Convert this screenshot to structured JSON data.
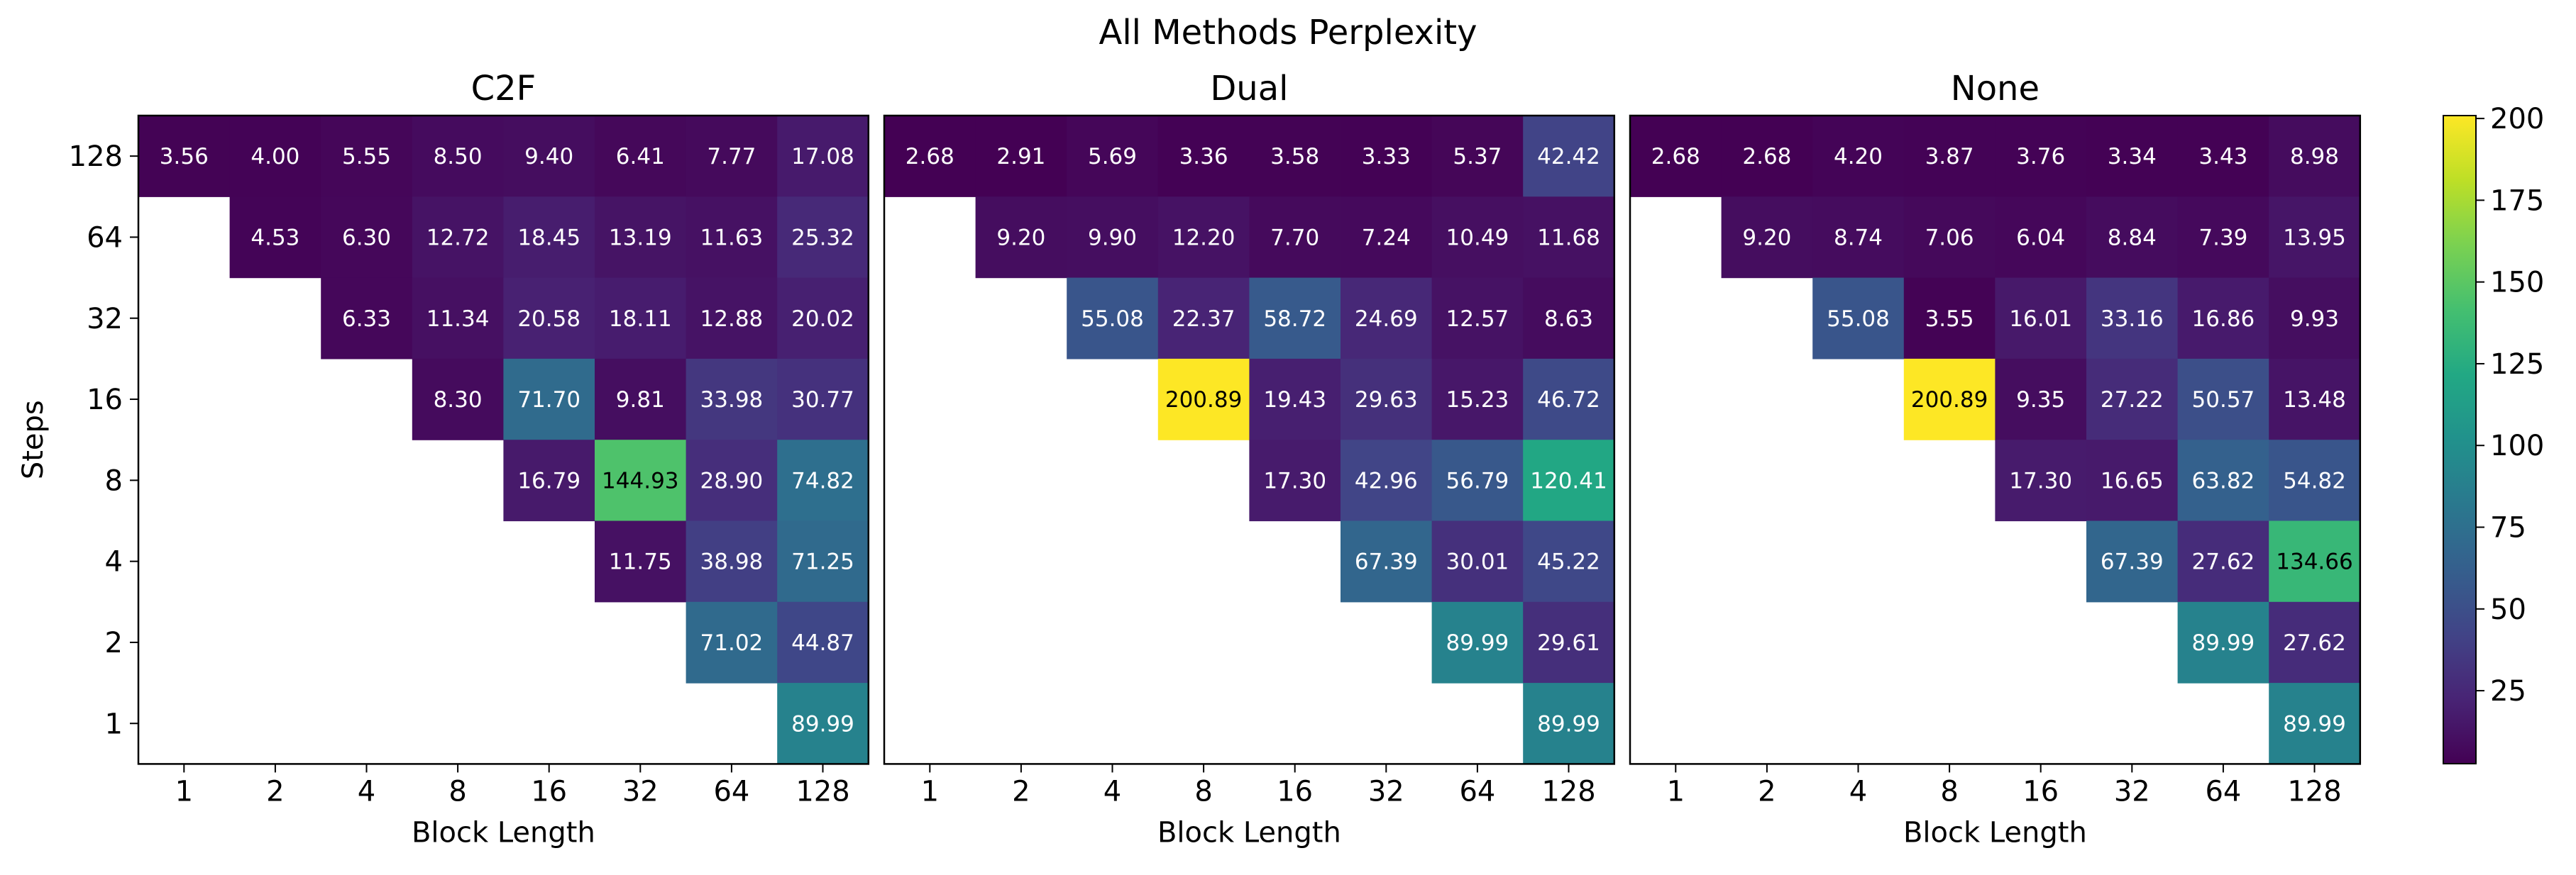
{
  "title": "All Methods Perplexity",
  "chart_data": [
    {
      "type": "heatmap",
      "title": "C2F",
      "xlabel": "Block Length",
      "ylabel": "Steps",
      "x_categories": [
        "1",
        "2",
        "4",
        "8",
        "16",
        "32",
        "64",
        "128"
      ],
      "y_categories": [
        "128",
        "64",
        "32",
        "16",
        "8",
        "4",
        "2",
        "1"
      ],
      "values": [
        [
          3.56,
          4.0,
          5.55,
          8.5,
          9.4,
          6.41,
          7.77,
          17.08
        ],
        [
          null,
          4.53,
          6.3,
          12.72,
          18.45,
          13.19,
          11.63,
          25.32
        ],
        [
          null,
          null,
          6.33,
          11.34,
          20.58,
          18.11,
          12.88,
          20.02
        ],
        [
          null,
          null,
          null,
          8.3,
          71.7,
          9.81,
          33.98,
          30.77
        ],
        [
          null,
          null,
          null,
          null,
          16.79,
          144.93,
          28.9,
          74.82
        ],
        [
          null,
          null,
          null,
          null,
          null,
          11.75,
          38.98,
          71.25
        ],
        [
          null,
          null,
          null,
          null,
          null,
          null,
          71.02,
          44.87
        ],
        [
          null,
          null,
          null,
          null,
          null,
          null,
          null,
          89.99
        ]
      ]
    },
    {
      "type": "heatmap",
      "title": "Dual",
      "xlabel": "Block Length",
      "ylabel": "",
      "x_categories": [
        "1",
        "2",
        "4",
        "8",
        "16",
        "32",
        "64",
        "128"
      ],
      "y_categories": [
        "128",
        "64",
        "32",
        "16",
        "8",
        "4",
        "2",
        "1"
      ],
      "values": [
        [
          2.68,
          2.91,
          5.69,
          3.36,
          3.58,
          3.33,
          5.37,
          42.42
        ],
        [
          null,
          9.2,
          9.9,
          12.2,
          7.7,
          7.24,
          10.49,
          11.68
        ],
        [
          null,
          null,
          55.08,
          22.37,
          58.72,
          24.69,
          12.57,
          8.63
        ],
        [
          null,
          null,
          null,
          200.89,
          19.43,
          29.63,
          15.23,
          46.72
        ],
        [
          null,
          null,
          null,
          null,
          17.3,
          42.96,
          56.79,
          120.41
        ],
        [
          null,
          null,
          null,
          null,
          null,
          67.39,
          30.01,
          45.22
        ],
        [
          null,
          null,
          null,
          null,
          null,
          null,
          89.99,
          29.61
        ],
        [
          null,
          null,
          null,
          null,
          null,
          null,
          null,
          89.99
        ]
      ]
    },
    {
      "type": "heatmap",
      "title": "None",
      "xlabel": "Block Length",
      "ylabel": "",
      "x_categories": [
        "1",
        "2",
        "4",
        "8",
        "16",
        "32",
        "64",
        "128"
      ],
      "y_categories": [
        "128",
        "64",
        "32",
        "16",
        "8",
        "4",
        "2",
        "1"
      ],
      "values": [
        [
          2.68,
          2.68,
          4.2,
          3.87,
          3.76,
          3.34,
          3.43,
          8.98
        ],
        [
          null,
          9.2,
          8.74,
          7.06,
          6.04,
          8.84,
          7.39,
          13.95
        ],
        [
          null,
          null,
          55.08,
          3.55,
          16.01,
          33.16,
          16.86,
          9.93
        ],
        [
          null,
          null,
          null,
          200.89,
          9.35,
          27.22,
          50.57,
          13.48
        ],
        [
          null,
          null,
          null,
          null,
          17.3,
          16.65,
          63.82,
          54.82
        ],
        [
          null,
          null,
          null,
          null,
          null,
          67.39,
          27.62,
          134.66
        ],
        [
          null,
          null,
          null,
          null,
          null,
          null,
          89.99,
          27.62
        ],
        [
          null,
          null,
          null,
          null,
          null,
          null,
          null,
          89.99
        ]
      ]
    }
  ],
  "colorbar": {
    "colormap": "viridis",
    "vmin": 2.68,
    "vmax": 200.89,
    "ticks": [
      "25",
      "50",
      "75",
      "100",
      "125",
      "150",
      "175",
      "200"
    ]
  }
}
